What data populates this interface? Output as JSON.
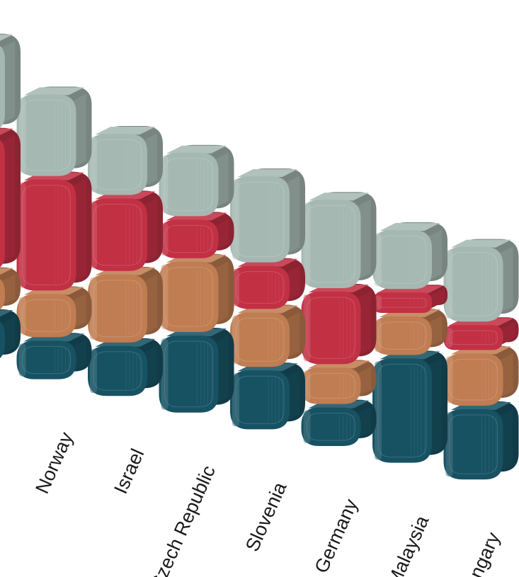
{
  "chart_data": {
    "type": "bar",
    "stacked": true,
    "orientation": "vertical",
    "style": "3d-rounded-blocks",
    "title": "",
    "xlabel": "",
    "ylabel": "",
    "categories": [
      "",
      "Norway",
      "Israel",
      "Czech Republic",
      "Slovenia",
      "Germany",
      "Malaysia",
      "Hungary"
    ],
    "series": [
      {
        "color": "#175263",
        "values": [
          20,
          17,
          22,
          34,
          26,
          17,
          46,
          31
        ]
      },
      {
        "color": "#c07d52",
        "values": [
          17,
          19,
          30,
          31,
          24,
          16,
          17,
          23
        ]
      },
      {
        "color": "#c23044",
        "values": [
          60,
          49,
          32,
          17,
          19,
          32,
          9,
          11
        ]
      },
      {
        "color": "#a6b8b2",
        "values": [
          40,
          36,
          27,
          28,
          38,
          39,
          26,
          33
        ]
      }
    ]
  }
}
